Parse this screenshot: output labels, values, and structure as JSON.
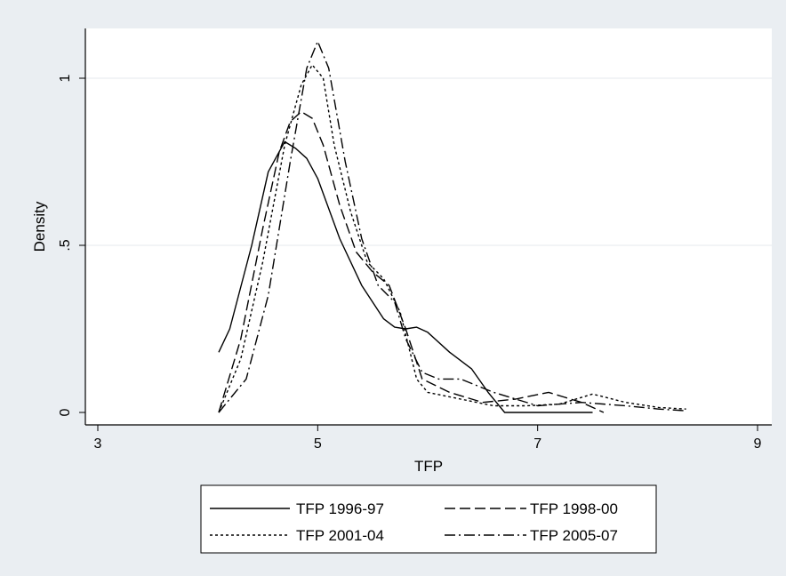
{
  "chart_data": {
    "type": "line",
    "title": "",
    "xlabel": "TFP",
    "ylabel": "Density",
    "xlim": [
      3,
      9
    ],
    "ylim": [
      0,
      1.15
    ],
    "xticks": [
      "3",
      "5",
      "7",
      "9"
    ],
    "yticks": [
      "0",
      ".5",
      "1"
    ],
    "grid": "horizontal",
    "legend_position": "bottom",
    "series": [
      {
        "name": "TFP 1996-97",
        "dash": "solid",
        "x": [
          4.1,
          4.2,
          4.4,
          4.55,
          4.7,
          4.8,
          4.9,
          5.0,
          5.2,
          5.4,
          5.6,
          5.7,
          5.8,
          5.9,
          6.0,
          6.2,
          6.4,
          6.55,
          6.7,
          6.9,
          7.2,
          7.5
        ],
        "y": [
          0.18,
          0.25,
          0.5,
          0.72,
          0.81,
          0.79,
          0.76,
          0.7,
          0.52,
          0.38,
          0.28,
          0.255,
          0.25,
          0.255,
          0.24,
          0.18,
          0.13,
          0.06,
          0.0,
          0.0,
          0.0,
          0.0
        ]
      },
      {
        "name": "TFP 1998-00",
        "dash": "dashed",
        "x": [
          4.1,
          4.3,
          4.5,
          4.65,
          4.75,
          4.85,
          4.95,
          5.05,
          5.2,
          5.35,
          5.5,
          5.65,
          5.8,
          5.95,
          6.2,
          6.5,
          6.8,
          7.1,
          7.4,
          7.6
        ],
        "y": [
          0.0,
          0.22,
          0.55,
          0.78,
          0.87,
          0.9,
          0.88,
          0.8,
          0.62,
          0.48,
          0.42,
          0.38,
          0.25,
          0.1,
          0.06,
          0.03,
          0.04,
          0.06,
          0.03,
          0.0
        ]
      },
      {
        "name": "TFP 2001-04",
        "dash": "dotted",
        "x": [
          4.1,
          4.3,
          4.5,
          4.7,
          4.85,
          4.95,
          5.05,
          5.15,
          5.3,
          5.45,
          5.6,
          5.75,
          5.9,
          6.0,
          6.3,
          6.6,
          6.9,
          7.2,
          7.5,
          7.8,
          8.1,
          8.35
        ],
        "y": [
          0.0,
          0.16,
          0.45,
          0.8,
          0.98,
          1.04,
          1.0,
          0.8,
          0.6,
          0.45,
          0.4,
          0.3,
          0.1,
          0.06,
          0.04,
          0.02,
          0.02,
          0.025,
          0.055,
          0.03,
          0.015,
          0.01
        ]
      },
      {
        "name": "TFP 2005-07",
        "dash": "dashdot",
        "x": [
          4.1,
          4.35,
          4.55,
          4.75,
          4.9,
          5.0,
          5.1,
          5.25,
          5.4,
          5.55,
          5.7,
          5.8,
          5.95,
          6.1,
          6.3,
          6.6,
          7.0,
          7.4,
          7.8,
          8.1,
          8.35
        ],
        "y": [
          0.0,
          0.1,
          0.35,
          0.75,
          1.03,
          1.11,
          1.03,
          0.75,
          0.52,
          0.38,
          0.33,
          0.22,
          0.12,
          0.1,
          0.1,
          0.06,
          0.02,
          0.03,
          0.02,
          0.01,
          0.005
        ]
      }
    ]
  },
  "colors": {
    "frame_background": "#eaeef2",
    "plot_background": "#ffffff",
    "gridline": "#e4e8ec",
    "line": "#000000"
  }
}
